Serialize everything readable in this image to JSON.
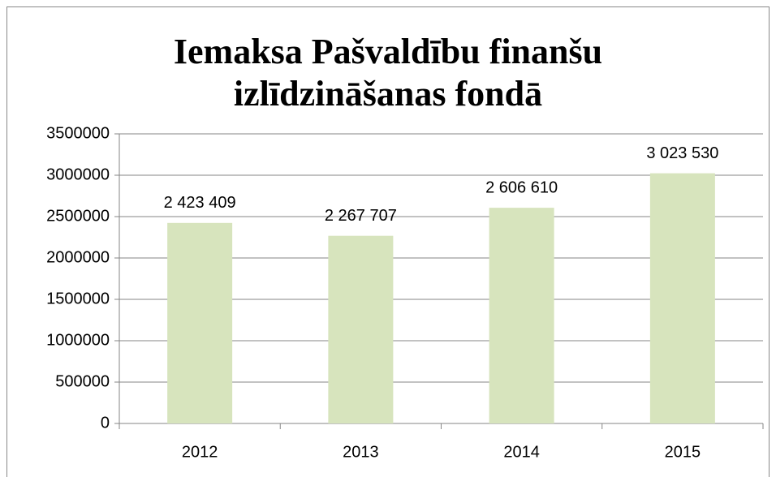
{
  "chart_data": {
    "type": "bar",
    "title": "Iemaksa Pašvaldību finanšu izlīdzināšanas fondā",
    "categories": [
      "2012",
      "2013",
      "2014",
      "2015"
    ],
    "values": [
      2423409,
      2267707,
      2606610,
      3023530
    ],
    "value_labels": [
      "2 423 409",
      "2 267 707",
      "2 606 610",
      "3 023 530"
    ],
    "color": "#d7e4bd",
    "ylim": [
      0,
      3500000
    ],
    "yticks": [
      0,
      500000,
      1000000,
      1500000,
      2000000,
      2500000,
      3000000,
      3500000
    ],
    "grid": true
  }
}
